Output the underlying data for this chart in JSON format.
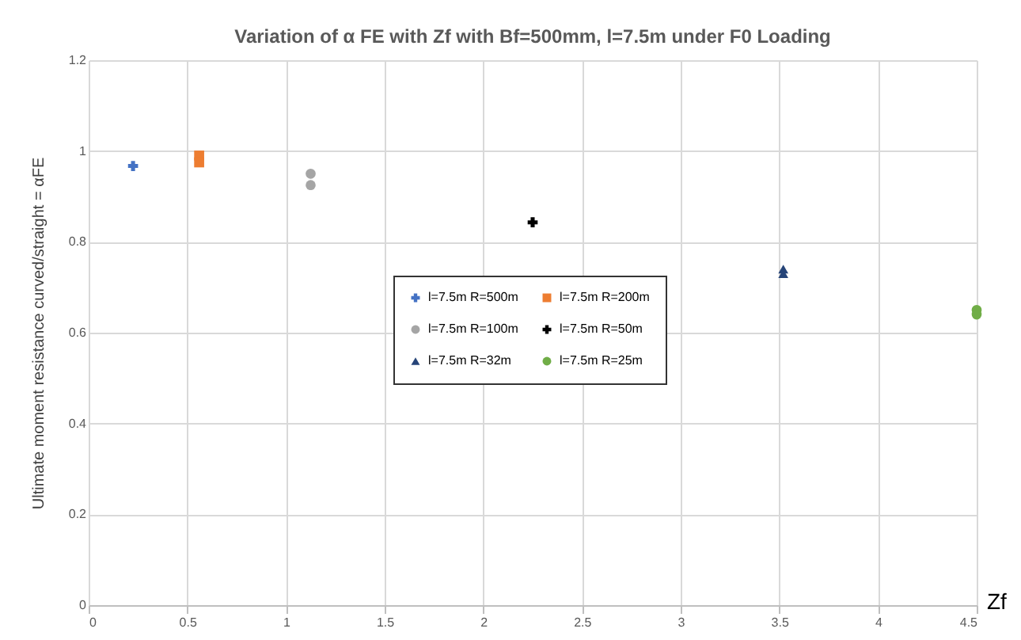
{
  "chart_data": {
    "type": "scatter",
    "title": "Variation of α FE with Zf  with Bf=500mm, l=7.5m  under F0 Loading",
    "xlabel": "Zf",
    "ylabel": "Ultimate moment resistance curved/straight = αFE",
    "series": [
      {
        "name": "l=7.5m R=500m",
        "color": "#4472c4",
        "marker": "cross",
        "x": [
          0.225
        ],
        "values": [
          0.967
        ]
      },
      {
        "name": "l=7.5m R=200m",
        "color": "#ed7d31",
        "marker": "square",
        "x": [
          0.56,
          0.56
        ],
        "values": [
          0.99,
          0.975
        ]
      },
      {
        "name": "l=7.5m R=100m",
        "color": "#a5a5a5",
        "marker": "circle",
        "x": [
          1.125,
          1.125
        ],
        "values": [
          0.95,
          0.925
        ]
      },
      {
        "name": "l=7.5m R=50m",
        "color": "#000000",
        "marker": "cross",
        "x": [
          2.25
        ],
        "values": [
          0.843
        ]
      },
      {
        "name": "l=7.5m R=32m",
        "color": "#264478",
        "marker": "triangle",
        "x": [
          3.52,
          3.52
        ],
        "values": [
          0.74,
          0.73
        ]
      },
      {
        "name": "l=7.5m R=25m",
        "color": "#70ad47",
        "marker": "circle",
        "x": [
          4.5,
          4.5
        ],
        "values": [
          0.65,
          0.64
        ]
      }
    ],
    "xlim": [
      0,
      4.5
    ],
    "xticks": [
      0,
      0.5,
      1,
      1.5,
      2,
      2.5,
      3,
      3.5,
      4,
      4.5
    ],
    "ylim": [
      0,
      1.2
    ],
    "yticks": [
      0,
      0.2,
      0.4,
      0.6,
      0.8,
      1,
      1.2
    ],
    "grid": true,
    "legend": "center"
  }
}
